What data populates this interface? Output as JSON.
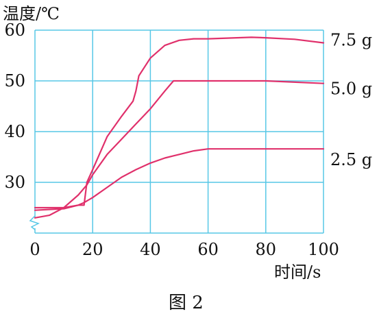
{
  "chart_data": {
    "type": "line",
    "title": "",
    "caption": "图 2",
    "ylabel": "温度/℃",
    "xlabel": "时间/s",
    "xlim": [
      0,
      100
    ],
    "ylim": [
      20,
      60
    ],
    "x_ticks": [
      0,
      20,
      40,
      60,
      80,
      100
    ],
    "y_ticks": [
      30,
      40,
      50,
      60
    ],
    "grid": true,
    "axis_break": true,
    "colors": {
      "line": "#e0306b",
      "grid": "#56c7e6",
      "text": "#111111"
    },
    "series": [
      {
        "name": "7.5 g",
        "x": [
          0,
          5,
          10,
          15,
          17,
          18,
          20,
          25,
          30,
          34,
          35,
          36,
          40,
          45,
          50,
          55,
          60,
          70,
          75,
          80,
          90,
          100
        ],
        "y": [
          25,
          25,
          25,
          25.5,
          25.5,
          30,
          32.5,
          39,
          43,
          46,
          48,
          51,
          54.5,
          57,
          58,
          58.3,
          58.3,
          58.5,
          58.6,
          58.5,
          58.2,
          57.5
        ]
      },
      {
        "name": "5.0 g",
        "x": [
          0,
          5,
          10,
          15,
          18,
          20,
          25,
          30,
          35,
          40,
          45,
          48,
          50,
          60,
          80,
          100
        ],
        "y": [
          23,
          23.5,
          25,
          27.5,
          29.5,
          31.5,
          35.5,
          38.5,
          41.5,
          44.5,
          48,
          50,
          50,
          50,
          50,
          49.5
        ]
      },
      {
        "name": "2.5 g",
        "x": [
          0,
          10,
          15,
          17,
          20,
          25,
          30,
          35,
          40,
          45,
          50,
          55,
          60,
          80,
          100
        ],
        "y": [
          24.5,
          24.8,
          25.5,
          26,
          27,
          29,
          31,
          32.5,
          33.8,
          34.8,
          35.5,
          36.2,
          36.6,
          36.6,
          36.6
        ]
      }
    ]
  }
}
